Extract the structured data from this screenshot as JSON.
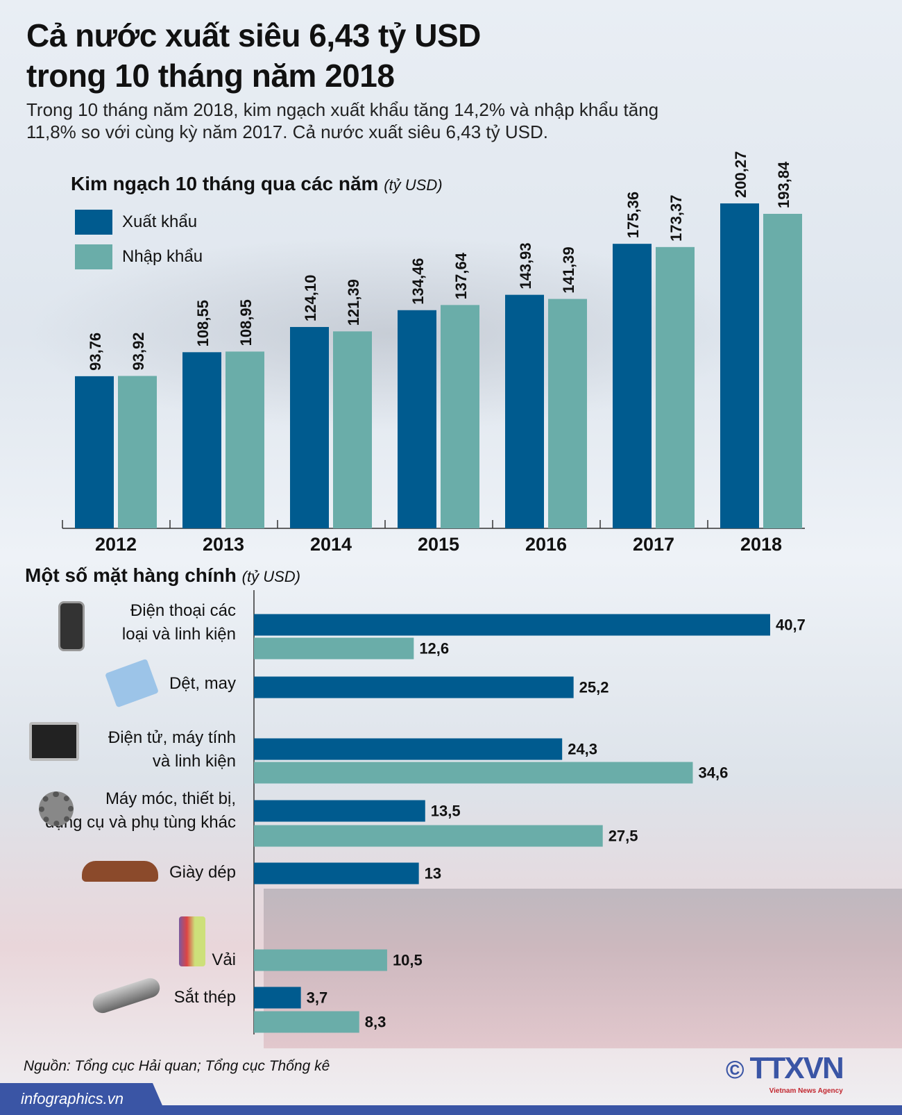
{
  "title_line1": "Cả nước xuất siêu 6,43 tỷ USD",
  "title_line2": "trong 10 tháng năm 2018",
  "subtitle": "Trong 10 tháng năm 2018, kim ngạch xuất khẩu tăng 14,2% và nhập khẩu tăng 11,8% so với cùng kỳ năm 2017. Cả nước xuất siêu 6,43 tỷ USD.",
  "colors": {
    "export": "#005b8f",
    "import": "#6aada9"
  },
  "chart_data": [
    {
      "type": "bar",
      "title": "Kim ngạch 10 tháng qua các năm",
      "unit": "(tỷ USD)",
      "categories": [
        "2012",
        "2013",
        "2014",
        "2015",
        "2016",
        "2017",
        "2018"
      ],
      "series": [
        {
          "name": "Xuất khẩu",
          "values": [
            93.76,
            108.55,
            124.1,
            134.46,
            143.93,
            175.36,
            200.27
          ],
          "labels": [
            "93,76",
            "108,55",
            "124,10",
            "134,46",
            "143,93",
            "175,36",
            "200,27"
          ]
        },
        {
          "name": "Nhập khẩu",
          "values": [
            93.92,
            108.95,
            121.39,
            137.64,
            141.39,
            173.37,
            193.84
          ],
          "labels": [
            "93,92",
            "108,95",
            "121,39",
            "137,64",
            "141,39",
            "173,37",
            "193,84"
          ]
        }
      ]
    },
    {
      "type": "bar",
      "orientation": "horizontal",
      "title": "Một số mặt hàng chính",
      "unit": "(tỷ USD)",
      "categories": [
        {
          "name": "Điện thoại các loại và linh kiện",
          "lines": [
            "Điện thoại các",
            "loại và linh kiện"
          ],
          "icon": "phone-icon",
          "export": 40.7,
          "export_label": "40,7",
          "import": 12.6,
          "import_label": "12,6"
        },
        {
          "name": "Dệt, may",
          "lines": [
            "Dệt, may"
          ],
          "icon": "shirt-icon",
          "export": 25.2,
          "export_label": "25,2",
          "import": null
        },
        {
          "name": "Điện tử, máy tính và linh kiện",
          "lines": [
            "Điện tử, máy tính",
            "và linh kiện"
          ],
          "icon": "computer-icon",
          "export": 24.3,
          "export_label": "24,3",
          "import": 34.6,
          "import_label": "34,6"
        },
        {
          "name": "Máy móc, thiết bị, dụng cụ và phụ tùng khác",
          "lines": [
            "Máy móc, thiết bị,",
            "dụng cụ và phụ tùng khác"
          ],
          "icon": "gear-icon",
          "export": 13.5,
          "export_label": "13,5",
          "import": 27.5,
          "import_label": "27,5"
        },
        {
          "name": "Giày dép",
          "lines": [
            "Giày dép"
          ],
          "icon": "shoe-icon",
          "export": 13,
          "export_label": "13",
          "import": null
        },
        {
          "name": "Vải",
          "lines": [
            "Vải"
          ],
          "icon": "fabric-icon",
          "export": null,
          "import": 10.5,
          "import_label": "10,5"
        },
        {
          "name": "Sắt thép",
          "lines": [
            "Sắt thép"
          ],
          "icon": "steel-pipe-icon",
          "export": 3.7,
          "export_label": "3,7",
          "import": 8.3,
          "import_label": "8,3"
        }
      ]
    }
  ],
  "source": "Nguồn: Tổng cục Hải quan; Tổng cục Thống kê",
  "footer": "infographics.vn",
  "logo": {
    "text": "TTXVN",
    "tagline": "Vietnam News Agency",
    "copyright": "©"
  }
}
